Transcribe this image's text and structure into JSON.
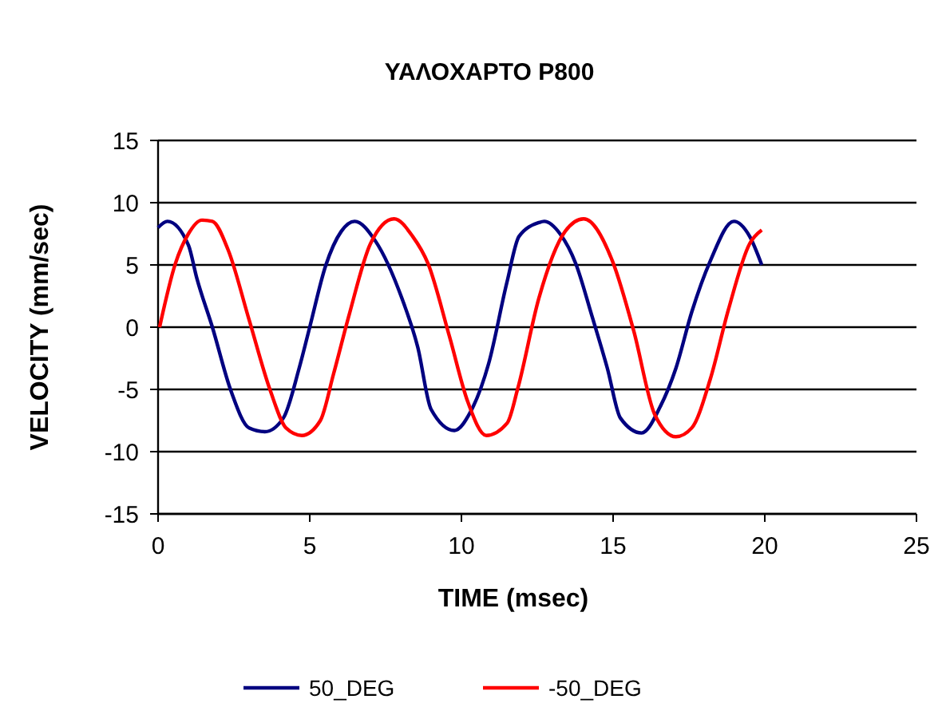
{
  "chart_data": {
    "type": "line",
    "title": "ΥΑΛΟΧΑΡΤΟ P800",
    "xlabel": "TIME (msec)",
    "ylabel": "VELOCITY (mm/sec)",
    "xlim": [
      0,
      25
    ],
    "xticks": [
      0,
      5,
      10,
      15,
      20,
      25
    ],
    "ylim": [
      -15,
      15
    ],
    "yticks": [
      -15,
      -10,
      -5,
      0,
      5,
      10,
      15
    ],
    "grid": "y",
    "legend": "bottom",
    "marker": "none",
    "line_style": "solid",
    "series": [
      {
        "name": "50_DEG",
        "color": "#000080",
        "x": [
          0,
          0.31,
          1.0,
          1.27,
          1.79,
          2.4,
          3.0,
          3.52,
          4.13,
          4.65,
          5.0,
          5.52,
          6.04,
          6.48,
          7.17,
          8.04,
          8.56,
          9.0,
          9.77,
          10.3,
          10.9,
          11.5,
          11.9,
          12.55,
          12.73,
          13.25,
          13.77,
          14.29,
          14.81,
          15.24,
          15.94,
          16.55,
          17.07,
          17.59,
          18.2,
          18.98,
          19.5,
          19.9
        ],
        "values": [
          8.0,
          8.5,
          6.6,
          4.0,
          0,
          -5.1,
          -8.1,
          -8.4,
          -7.3,
          -3.3,
          0,
          4.9,
          7.7,
          8.5,
          6.9,
          2.3,
          -1.6,
          -6.6,
          -8.3,
          -6.8,
          -2.9,
          3.6,
          7.3,
          8.4,
          8.5,
          7.5,
          5.1,
          1.0,
          -3.3,
          -7.3,
          -8.5,
          -6.4,
          -3.3,
          1.2,
          5.3,
          8.5,
          7.3,
          5.0
        ]
      },
      {
        "name": "-50_DEG",
        "color": "#ff0000",
        "x": [
          0.05,
          0.57,
          1.0,
          1.44,
          1.79,
          2.31,
          3.0,
          3.7,
          4.22,
          4.74,
          5.35,
          5.78,
          6.3,
          7.0,
          7.78,
          8.39,
          8.9,
          9.6,
          10.21,
          10.82,
          11.51,
          11.86,
          12.55,
          13.42,
          14.03,
          14.98,
          15.68,
          16.37,
          17.07,
          17.59,
          18.2,
          18.8,
          19.5,
          19.9
        ],
        "values": [
          0,
          5.1,
          7.5,
          8.6,
          8.5,
          6.2,
          0.6,
          -5.1,
          -8.1,
          -8.7,
          -7.5,
          -3.8,
          1.0,
          6.7,
          8.7,
          7.3,
          5.1,
          -0.7,
          -6.0,
          -8.7,
          -7.7,
          -4.9,
          2.3,
          7.7,
          8.7,
          5.3,
          -0.3,
          -7.0,
          -8.8,
          -8.1,
          -4.2,
          1.4,
          6.7,
          7.8
        ]
      }
    ]
  }
}
